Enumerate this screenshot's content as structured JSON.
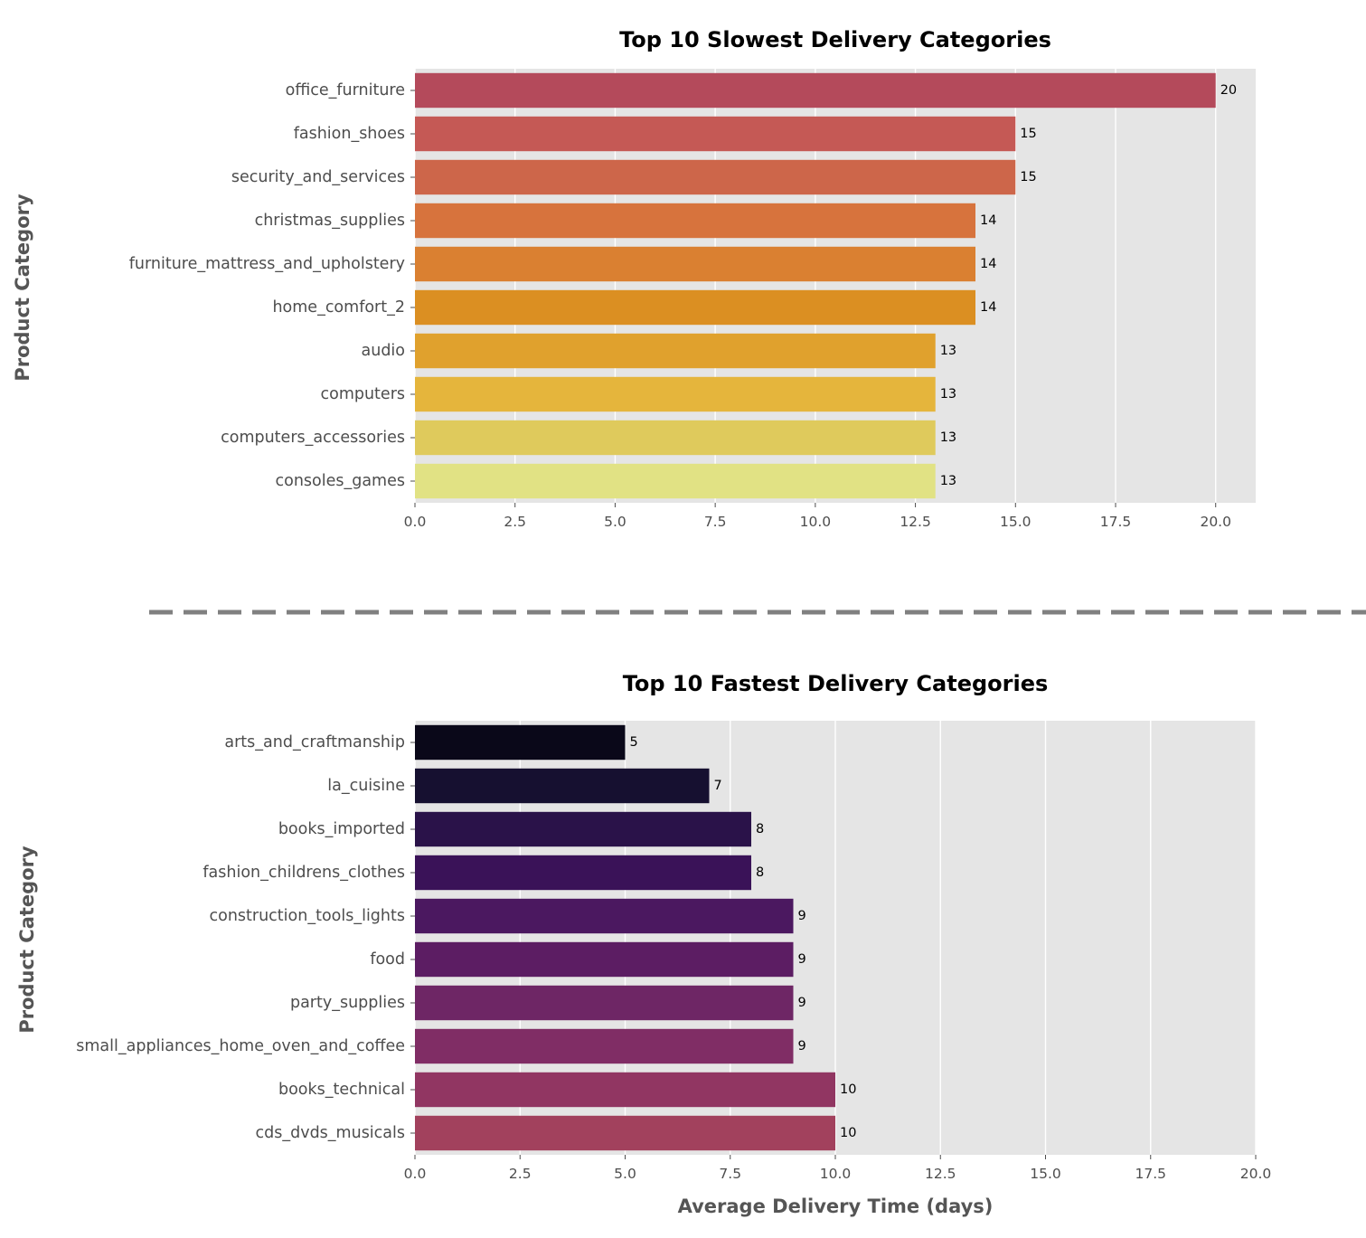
{
  "chart_data": [
    {
      "type": "bar",
      "orientation": "horizontal",
      "title": "Top 10 Slowest Delivery Categories",
      "ylabel": "Product Category",
      "xlabel": "",
      "xlim": [
        0,
        21
      ],
      "xticks": [
        0,
        2.5,
        5,
        7.5,
        10,
        12.5,
        15,
        17.5,
        20
      ],
      "xtick_labels": [
        "0.0",
        "2.5",
        "5.0",
        "7.5",
        "10.0",
        "12.5",
        "15.0",
        "17.5",
        "20.0"
      ],
      "grid": true,
      "categories": [
        "office_furniture",
        "fashion_shoes",
        "security_and_services",
        "christmas_supplies",
        "furniture_mattress_and_upholstery",
        "home_comfort_2",
        "audio",
        "computers",
        "computers_accessories",
        "consoles_games"
      ],
      "values": [
        20,
        15,
        15,
        14,
        14,
        14,
        13,
        13,
        13,
        13
      ],
      "data_labels": [
        "20",
        "15",
        "15",
        "14",
        "14",
        "14",
        "13",
        "13",
        "13",
        "13"
      ],
      "colors": [
        "#b44a5b",
        "#c55955",
        "#cd664a",
        "#d7733d",
        "#da8031",
        "#db8f22",
        "#e0a12d",
        "#e5b53c",
        "#dfca5c",
        "#e1e284"
      ]
    },
    {
      "type": "bar",
      "orientation": "horizontal",
      "title": "Top 10 Fastest Delivery Categories",
      "ylabel": "Product Category",
      "xlabel": "Average Delivery Time (days)",
      "xlim": [
        0,
        20
      ],
      "xticks": [
        0,
        2.5,
        5,
        7.5,
        10,
        12.5,
        15,
        17.5,
        20
      ],
      "xtick_labels": [
        "0.0",
        "2.5",
        "5.0",
        "7.5",
        "10.0",
        "12.5",
        "15.0",
        "17.5",
        "20.0"
      ],
      "grid": true,
      "categories": [
        "arts_and_craftmanship",
        "la_cuisine",
        "books_imported",
        "fashion_childrens_clothes",
        "construction_tools_lights",
        "food",
        "party_supplies",
        "small_appliances_home_oven_and_coffee",
        "books_technical",
        "cds_dvds_musicals"
      ],
      "values": [
        5,
        7,
        8,
        8,
        9,
        9,
        9,
        9,
        10,
        10
      ],
      "data_labels": [
        "5",
        "7",
        "8",
        "8",
        "9",
        "9",
        "9",
        "9",
        "10",
        "10"
      ],
      "colors": [
        "#0a0819",
        "#161030",
        "#2a1249",
        "#3a1258",
        "#4b1860",
        "#5c1d63",
        "#6e2665",
        "#802d65",
        "#913662",
        "#a2415d"
      ]
    }
  ],
  "style": {
    "plot_background": "#e5e5e5",
    "grid_color": "#ffffff",
    "separator_color": "#808080"
  }
}
